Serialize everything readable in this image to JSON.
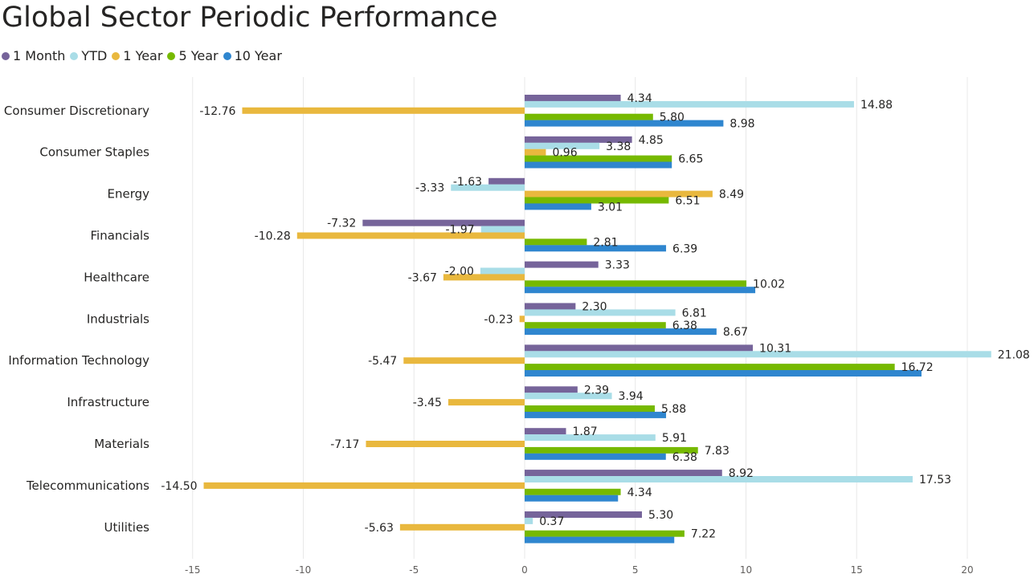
{
  "chart_data": {
    "type": "bar",
    "orientation": "horizontal",
    "title": "Global Sector Periodic Performance",
    "legend_position": "top-left",
    "grid": true,
    "xlim": [
      -15,
      22
    ],
    "xticks": [
      -15,
      -10,
      -5,
      0,
      5,
      10,
      15,
      20
    ],
    "categories": [
      "Consumer Discretionary",
      "Consumer Staples",
      "Energy",
      "Financials",
      "Healthcare",
      "Industrials",
      "Information Technology",
      "Infrastructure",
      "Materials",
      "Telecommunications",
      "Utilities"
    ],
    "series": [
      {
        "name": "1 Month",
        "color": "#76649a",
        "values": [
          4.34,
          4.85,
          -1.63,
          -7.32,
          3.33,
          2.3,
          10.31,
          2.39,
          1.87,
          8.92,
          5.3
        ],
        "labels": [
          "4.34",
          "4.85",
          "-1.63",
          "-7.32",
          "3.33",
          "2.30",
          "10.31",
          "2.39",
          "1.87",
          "8.92",
          "5.30"
        ]
      },
      {
        "name": "YTD",
        "color": "#a9dde7",
        "values": [
          14.88,
          3.38,
          -3.33,
          -1.97,
          -2.0,
          6.81,
          21.08,
          3.94,
          5.91,
          17.53,
          0.37
        ],
        "labels": [
          "14.88",
          "3.38",
          "-3.33",
          "-1.97",
          "-2.00",
          "6.81",
          "21.08",
          "3.94",
          "5.91",
          "17.53",
          "0.37"
        ]
      },
      {
        "name": "1 Year",
        "color": "#e9b83e",
        "values": [
          -12.76,
          0.96,
          8.49,
          -10.28,
          -3.67,
          -0.23,
          -5.47,
          -3.45,
          -7.17,
          -14.5,
          -5.63
        ],
        "labels": [
          "-12.76",
          "0.96",
          "8.49",
          "-10.28",
          "-3.67",
          "-0.23",
          "-5.47",
          "-3.45",
          "-7.17",
          "-14.50",
          "-5.63"
        ]
      },
      {
        "name": "5 Year",
        "color": "#76b900",
        "values": [
          5.8,
          6.65,
          6.51,
          2.81,
          10.02,
          6.38,
          16.72,
          5.88,
          7.83,
          4.34,
          7.22
        ],
        "labels": [
          "5.80",
          "6.65",
          "6.51",
          "2.81",
          "10.02",
          "6.38",
          "16.72",
          "5.88",
          "7.83",
          "4.34",
          "7.22"
        ]
      },
      {
        "name": "10 Year",
        "color": "#2f86cf",
        "values": [
          8.98,
          6.65,
          3.01,
          6.39,
          10.42,
          8.67,
          17.93,
          6.39,
          6.38,
          4.22,
          6.76
        ],
        "labels": [
          "8.98",
          "",
          "3.01",
          "6.39",
          "",
          "8.67",
          "",
          "",
          "6.38",
          "",
          ""
        ]
      }
    ]
  }
}
